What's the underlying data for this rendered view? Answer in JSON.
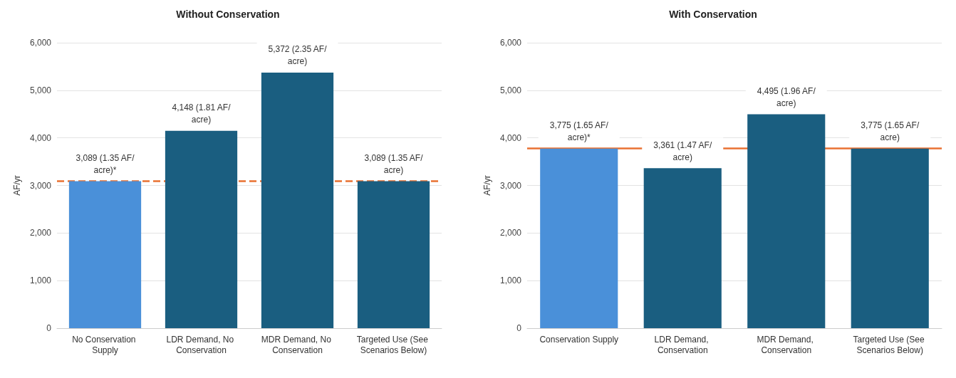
{
  "chart_data": [
    {
      "type": "bar",
      "title": "Without Conservation",
      "ylabel": "AF/yr",
      "categories": [
        "No Conservation Supply",
        "LDR Demand, No Conservation",
        "MDR Demand, No Conservation",
        "Targeted Use (See Scenarios Below)"
      ],
      "values": [
        3089,
        4148,
        5372,
        3089
      ],
      "colors": [
        "#4a90d9",
        "#1a5e80",
        "#1a5e80",
        "#1a5e80"
      ],
      "value_labels": [
        "3,089 (1.35 AF/acre)*",
        "4,148 (1.81 AF/acre)",
        "5,372 (2.35 AF/acre)",
        "3,089 (1.35 AF/acre)"
      ],
      "ylim": [
        0,
        6000
      ],
      "yticks": [
        {
          "value": 0,
          "label": "0"
        },
        {
          "value": 1000,
          "label": "1,000"
        },
        {
          "value": 2000,
          "label": "2,000"
        },
        {
          "value": 3000,
          "label": "3,000"
        },
        {
          "value": 4000,
          "label": "4,000"
        },
        {
          "value": 5000,
          "label": "5,000"
        },
        {
          "value": 6000,
          "label": "6,000"
        }
      ],
      "grid": "y",
      "ref_lines": [
        {
          "axis": "y",
          "value": 3089,
          "color": "#e97132",
          "line_style": "dashed"
        }
      ]
    },
    {
      "type": "bar",
      "title": "With Conservation",
      "ylabel": "AF/yr",
      "categories": [
        "Conservation Supply",
        "LDR Demand, Conservation",
        "MDR Demand, Conservation",
        "Targeted Use (See Scenarios Below)"
      ],
      "values": [
        3775,
        3361,
        4495,
        3775
      ],
      "colors": [
        "#4a90d9",
        "#1a5e80",
        "#1a5e80",
        "#1a5e80"
      ],
      "value_labels": [
        "3,775 (1.65 AF/acre)*",
        "3,361 (1.47 AF/acre)",
        "4,495 (1.96 AF/acre)",
        "3,775 (1.65 AF/acre)"
      ],
      "ylim": [
        0,
        6000
      ],
      "yticks": [
        {
          "value": 0,
          "label": "0"
        },
        {
          "value": 1000,
          "label": "1,000"
        },
        {
          "value": 2000,
          "label": "2,000"
        },
        {
          "value": 3000,
          "label": "3,000"
        },
        {
          "value": 4000,
          "label": "4,000"
        },
        {
          "value": 5000,
          "label": "5,000"
        },
        {
          "value": 6000,
          "label": "6,000"
        }
      ],
      "grid": "y",
      "ref_lines": [
        {
          "axis": "y",
          "value": 3775,
          "color": "#e97132",
          "line_style": "solid"
        }
      ]
    }
  ]
}
